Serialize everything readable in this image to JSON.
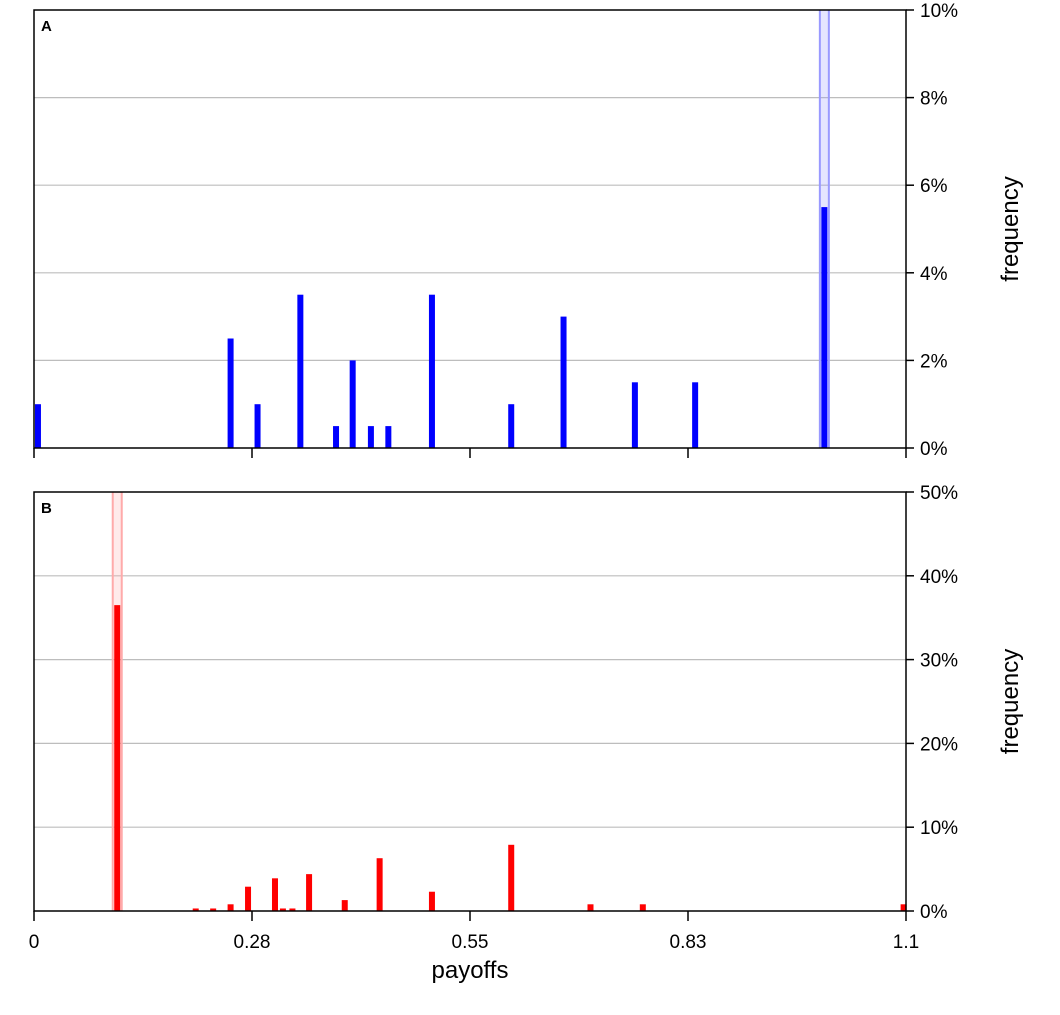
{
  "chart_data": [
    {
      "type": "bar",
      "panel_label": "A",
      "xlabel": "",
      "ylabel": "frequency",
      "xlim": [
        0,
        1.1
      ],
      "ylim": [
        0,
        10
      ],
      "y_tick_values": [
        0,
        2,
        4,
        6,
        8,
        10
      ],
      "y_tick_labels": [
        "0%",
        "2%",
        "4%",
        "6%",
        "8%",
        "10%"
      ],
      "x_tick_values": [
        0,
        0.275,
        0.55,
        0.825,
        1.1
      ],
      "x_tick_labels": [
        "",
        "",
        "",
        "",
        ""
      ],
      "grid": "horizontal",
      "y_axis_side": "right",
      "color": "#0000ff",
      "highlight_color": "#9999ff",
      "highlight_x": 0.997,
      "series": [
        {
          "x": [
            0.005,
            0.248,
            0.282,
            0.336,
            0.381,
            0.402,
            0.425,
            0.447,
            0.502,
            0.602,
            0.668,
            0.758,
            0.834,
            0.997
          ],
          "values": [
            1.0,
            2.5,
            1.0,
            3.5,
            0.5,
            2.0,
            0.5,
            0.5,
            3.5,
            1.0,
            3.0,
            1.5,
            1.5,
            5.5
          ]
        }
      ]
    },
    {
      "type": "bar",
      "panel_label": "B",
      "xlabel": "payoffs",
      "ylabel": "frequency",
      "xlim": [
        0,
        1.1
      ],
      "ylim": [
        0,
        50
      ],
      "y_tick_values": [
        0,
        10,
        20,
        30,
        40,
        50
      ],
      "y_tick_labels": [
        "0%",
        "10%",
        "20%",
        "30%",
        "40%",
        "50%"
      ],
      "x_tick_values": [
        0,
        0.275,
        0.55,
        0.825,
        1.1
      ],
      "x_tick_labels": [
        "0",
        "0.28",
        "0.55",
        "0.83",
        "1.1"
      ],
      "grid": "horizontal",
      "y_axis_side": "right",
      "color": "#ff0000",
      "highlight_color": "#ffaaaa",
      "highlight_x": 0.105,
      "series": [
        {
          "x": [
            0.105,
            0.204,
            0.226,
            0.248,
            0.27,
            0.304,
            0.314,
            0.326,
            0.347,
            0.392,
            0.436,
            0.502,
            0.602,
            0.702,
            0.768,
            1.097
          ],
          "values": [
            36.5,
            0.3,
            0.3,
            0.8,
            2.9,
            3.9,
            0.3,
            0.3,
            4.4,
            1.3,
            6.3,
            2.3,
            7.9,
            0.8,
            0.8,
            0.8
          ]
        }
      ]
    }
  ]
}
